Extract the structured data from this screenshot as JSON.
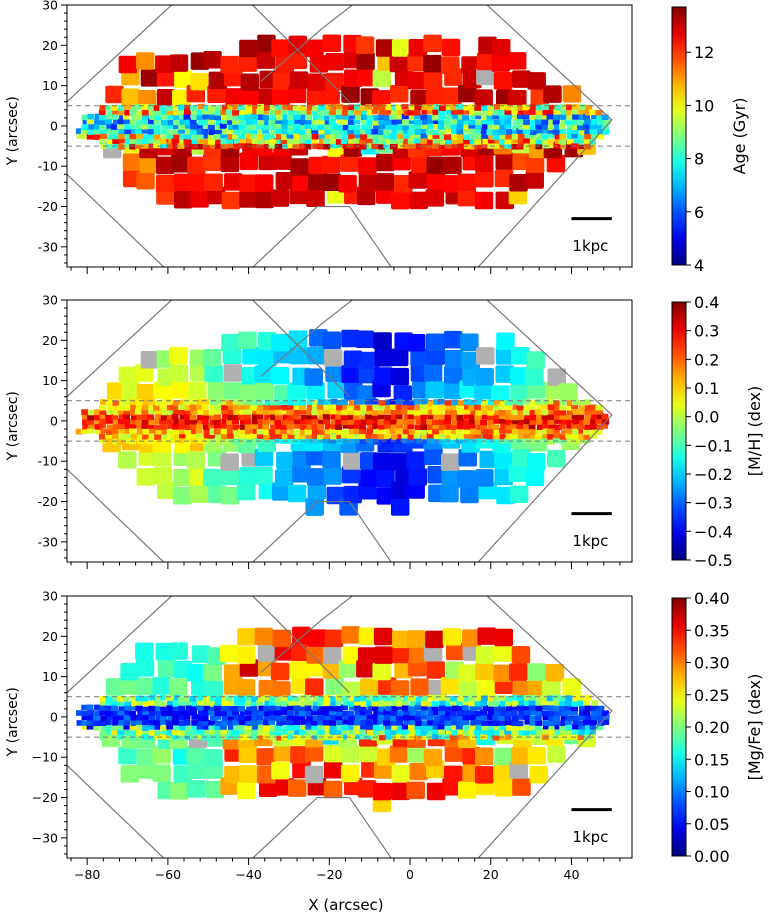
{
  "chart_data": [
    {
      "type": "heatmap",
      "panel": "top",
      "xlabel": "",
      "ylabel": "Y (arcsec)",
      "xlim": [
        -85,
        55
      ],
      "ylim": [
        -35,
        30
      ],
      "yticks": [
        "-30",
        "-20",
        "-10",
        "0",
        "10",
        "20",
        "30"
      ],
      "dashed_y": [
        -5,
        5
      ],
      "scalebar_label": "1kpc",
      "colorbar": {
        "label": "Age (Gyr)",
        "range": [
          4,
          13.7
        ],
        "ticks": [
          "4",
          "6",
          "8",
          "10",
          "12"
        ],
        "tick_values": [
          4,
          6,
          8,
          10,
          12
        ],
        "colormap": "jet"
      }
    },
    {
      "type": "heatmap",
      "panel": "middle",
      "xlabel": "",
      "ylabel": "Y (arcsec)",
      "xlim": [
        -85,
        55
      ],
      "ylim": [
        -35,
        30
      ],
      "yticks": [
        "-30",
        "-20",
        "-10",
        "0",
        "10",
        "20",
        "30"
      ],
      "dashed_y": [
        -5,
        5
      ],
      "scalebar_label": "1kpc",
      "colorbar": {
        "label": "[M/H] (dex)",
        "range": [
          -0.5,
          0.4
        ],
        "ticks": [
          "−0.5",
          "−0.4",
          "−0.3",
          "−0.2",
          "−0.1",
          "0.0",
          "0.1",
          "0.2",
          "0.3",
          "0.4"
        ],
        "tick_values": [
          -0.5,
          -0.4,
          -0.3,
          -0.2,
          -0.1,
          0.0,
          0.1,
          0.2,
          0.3,
          0.4
        ],
        "colormap": "jet"
      }
    },
    {
      "type": "heatmap",
      "panel": "bottom",
      "xlabel": "X (arcsec)",
      "ylabel": "Y (arcsec)",
      "xlim": [
        -85,
        55
      ],
      "ylim": [
        -35,
        30
      ],
      "xticks": [
        "−80",
        "−60",
        "−40",
        "−20",
        "0",
        "20",
        "40"
      ],
      "xtick_values": [
        -80,
        -60,
        -40,
        -20,
        0,
        20,
        40
      ],
      "yticks": [
        "−30",
        "−20",
        "−10",
        "0",
        "10",
        "20",
        "30"
      ],
      "dashed_y": [
        -5,
        5
      ],
      "scalebar_label": "1kpc",
      "colorbar": {
        "label": "[Mg/Fe] (dex)",
        "range": [
          0.0,
          0.4
        ],
        "ticks": [
          "0.00",
          "0.05",
          "0.10",
          "0.15",
          "0.20",
          "0.25",
          "0.30",
          "0.35",
          "0.40"
        ],
        "tick_values": [
          0.0,
          0.05,
          0.1,
          0.15,
          0.2,
          0.25,
          0.3,
          0.35,
          0.4
        ],
        "colormap": "jet"
      }
    }
  ]
}
